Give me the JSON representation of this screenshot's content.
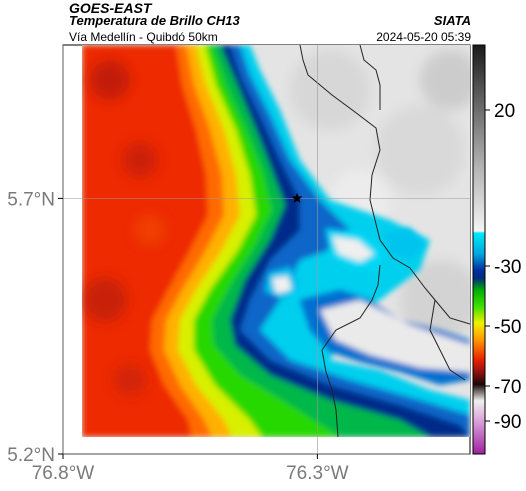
{
  "header": {
    "satellite": "GOES-EAST",
    "title": "Temperatura de Brillo CH13",
    "subtitle": "Vía Medellín - Quibdó 50km",
    "organization": "SIATA",
    "timestamp": "2024-05-20 05:39"
  },
  "map": {
    "lon_range": [
      -76.8,
      -76.0
    ],
    "lat_range": [
      5.2,
      6.0
    ],
    "x_ticks": [
      {
        "value": -76.8,
        "label": "76.8°W"
      },
      {
        "value": -76.3,
        "label": "76.3°W"
      }
    ],
    "y_ticks": [
      {
        "value": 5.7,
        "label": "5.7°N"
      },
      {
        "value": 5.2,
        "label": "5.2°N"
      }
    ],
    "gridlines": true,
    "marker": {
      "symbol": "star",
      "lon": -76.34,
      "lat": 5.7
    }
  },
  "colorbar": {
    "ticks": [
      {
        "value": 20,
        "label": "20"
      },
      {
        "value": -30,
        "label": "-30"
      },
      {
        "value": -50,
        "label": "-50"
      },
      {
        "value": -70,
        "label": "-70"
      },
      {
        "value": -90,
        "label": "-90"
      }
    ],
    "colors": {
      "warm_gray": "#e6e6e6",
      "cyan": "#00d4f0",
      "blue": "#0a3a9a",
      "green": "#00c800",
      "yellow": "#f0f000",
      "orange": "#ff8c00",
      "red": "#e81e00"
    }
  }
}
